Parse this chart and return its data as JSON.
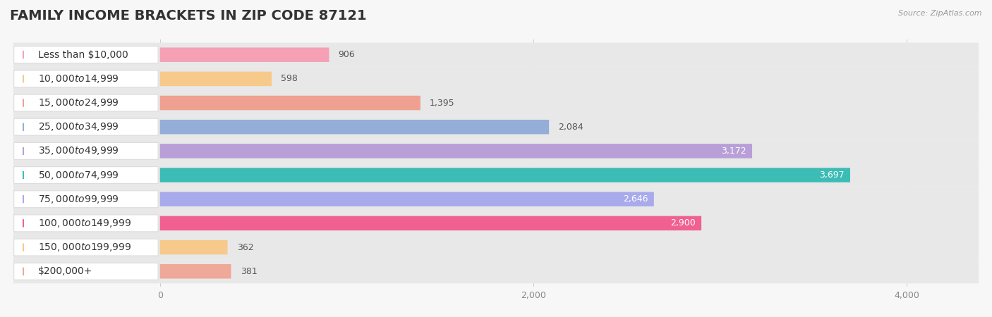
{
  "title": "FAMILY INCOME BRACKETS IN ZIP CODE 87121",
  "source": "Source: ZipAtlas.com",
  "categories": [
    "Less than $10,000",
    "$10,000 to $14,999",
    "$15,000 to $24,999",
    "$25,000 to $34,999",
    "$35,000 to $49,999",
    "$50,000 to $74,999",
    "$75,000 to $99,999",
    "$100,000 to $149,999",
    "$150,000 to $199,999",
    "$200,000+"
  ],
  "values": [
    906,
    598,
    1395,
    2084,
    3172,
    3697,
    2646,
    2900,
    362,
    381
  ],
  "bar_colors": [
    "#f5a0b5",
    "#f7c98a",
    "#f0a090",
    "#94aed8",
    "#b89fd8",
    "#3bbcb5",
    "#a8aaec",
    "#f06090",
    "#f7c98a",
    "#f0a898"
  ],
  "value_inside": [
    false,
    false,
    false,
    false,
    true,
    true,
    true,
    true,
    false,
    false
  ],
  "xlim_min": -800,
  "xlim_max": 4400,
  "xticks": [
    0,
    2000,
    4000
  ],
  "background_color": "#f7f7f7",
  "bar_bg_color": "#e8e8e8",
  "white_label_bg": "#ffffff",
  "title_fontsize": 14,
  "label_fontsize": 10,
  "value_fontsize": 9,
  "tick_fontsize": 9
}
